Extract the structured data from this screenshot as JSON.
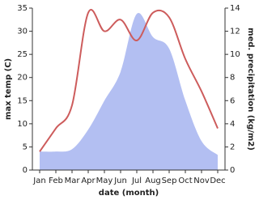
{
  "chart_data": {
    "type": "line-area",
    "xlabel": "date (month)",
    "ylabel": "max temp (C)",
    "y2label": "med. precipitation (kg/m2)",
    "categories": [
      "Jan",
      "Feb",
      "Mar",
      "Apr",
      "May",
      "Jun",
      "Jul",
      "Aug",
      "Sep",
      "Oct",
      "Nov",
      "Dec"
    ],
    "series": [
      {
        "name": "max temp",
        "type": "line",
        "color": "#cd5c5c",
        "values": [
          4,
          9,
          14,
          34,
          30,
          32.5,
          28,
          34,
          33,
          24,
          17,
          9
        ]
      },
      {
        "name": "med. precipitation",
        "type": "area",
        "axis": "y2",
        "color": "#b3bff2",
        "values": [
          1.6,
          1.6,
          1.8,
          3.5,
          6,
          8.5,
          13.5,
          11.5,
          10.5,
          6,
          2.5,
          1.3
        ]
      }
    ],
    "ylim": [
      0,
      35
    ],
    "yticks": [
      0,
      5,
      10,
      15,
      20,
      25,
      30,
      35
    ],
    "y2lim": [
      0,
      14
    ],
    "y2ticks": [
      0,
      2,
      4,
      6,
      8,
      10,
      12,
      14
    ]
  }
}
